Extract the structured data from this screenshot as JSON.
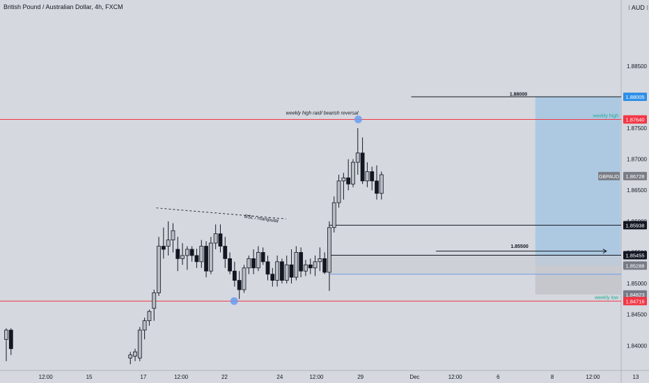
{
  "header": {
    "title": "British Pound / Australian Dollar, 4h, FXCM",
    "currency": "⁝ AUD ⁝"
  },
  "chart_data": {
    "type": "candlestick",
    "symbol": "GBPAUD",
    "ylim": [
      1.836,
      1.8945
    ],
    "y_ticks": [
      "1.88500",
      "1.87500",
      "1.87000",
      "1.86500",
      "1.86000",
      "1.85500",
      "1.85000",
      "1.84500",
      "1.84000"
    ],
    "x_labels": [
      {
        "label": "12:00",
        "t": 3.5
      },
      {
        "label": "15",
        "t": 7.35
      },
      {
        "label": "17",
        "t": 12.15
      },
      {
        "label": "12:00",
        "t": 15.5
      },
      {
        "label": "22",
        "t": 19.35
      },
      {
        "label": "24",
        "t": 24.25
      },
      {
        "label": "12:00",
        "t": 27.5
      },
      {
        "label": "29",
        "t": 31.4
      },
      {
        "label": "Dec",
        "t": 36.2
      },
      {
        "label": "12:00",
        "t": 39.8
      },
      {
        "label": "6",
        "t": 43.6
      },
      {
        "label": "8",
        "t": 48.4
      },
      {
        "label": "12:00",
        "t": 52
      },
      {
        "label": "13",
        "t": 55.8
      }
    ],
    "candles": [
      {
        "t": 0.0,
        "o": 1.841,
        "h": 1.8428,
        "l": 1.8375,
        "c": 1.8425
      },
      {
        "t": 0.42,
        "o": 1.8425,
        "h": 1.8428,
        "l": 1.8385,
        "c": 1.8395
      },
      {
        "t": 11.0,
        "o": 1.838,
        "h": 1.839,
        "l": 1.837,
        "c": 1.8385
      },
      {
        "t": 11.42,
        "o": 1.8383,
        "h": 1.8395,
        "l": 1.8375,
        "c": 1.839
      },
      {
        "t": 11.84,
        "o": 1.838,
        "h": 1.843,
        "l": 1.8375,
        "c": 1.8425
      },
      {
        "t": 12.26,
        "o": 1.8425,
        "h": 1.8445,
        "l": 1.841,
        "c": 1.844
      },
      {
        "t": 12.68,
        "o": 1.844,
        "h": 1.8458,
        "l": 1.8432,
        "c": 1.8455
      },
      {
        "t": 13.1,
        "o": 1.846,
        "h": 1.849,
        "l": 1.844,
        "c": 1.8485
      },
      {
        "t": 13.52,
        "o": 1.8485,
        "h": 1.8575,
        "l": 1.848,
        "c": 1.856
      },
      {
        "t": 13.94,
        "o": 1.856,
        "h": 1.859,
        "l": 1.854,
        "c": 1.8555
      },
      {
        "t": 14.36,
        "o": 1.856,
        "h": 1.86,
        "l": 1.8545,
        "c": 1.857
      },
      {
        "t": 14.78,
        "o": 1.857,
        "h": 1.8597,
        "l": 1.855,
        "c": 1.8585
      },
      {
        "t": 15.2,
        "o": 1.8555,
        "h": 1.8575,
        "l": 1.852,
        "c": 1.854
      },
      {
        "t": 15.62,
        "o": 1.854,
        "h": 1.8565,
        "l": 1.853,
        "c": 1.8545
      },
      {
        "t": 16.04,
        "o": 1.8545,
        "h": 1.856,
        "l": 1.8522,
        "c": 1.8555
      },
      {
        "t": 16.46,
        "o": 1.8555,
        "h": 1.856,
        "l": 1.8535,
        "c": 1.8545
      },
      {
        "t": 16.88,
        "o": 1.8545,
        "h": 1.8556,
        "l": 1.8525,
        "c": 1.8535
      },
      {
        "t": 17.3,
        "o": 1.8535,
        "h": 1.857,
        "l": 1.8525,
        "c": 1.856
      },
      {
        "t": 17.72,
        "o": 1.856,
        "h": 1.8568,
        "l": 1.851,
        "c": 1.852
      },
      {
        "t": 18.14,
        "o": 1.852,
        "h": 1.8575,
        "l": 1.8515,
        "c": 1.8565
      },
      {
        "t": 18.56,
        "o": 1.8565,
        "h": 1.8595,
        "l": 1.8555,
        "c": 1.858
      },
      {
        "t": 18.98,
        "o": 1.858,
        "h": 1.8595,
        "l": 1.855,
        "c": 1.856
      },
      {
        "t": 19.4,
        "o": 1.856,
        "h": 1.8575,
        "l": 1.8525,
        "c": 1.854
      },
      {
        "t": 19.82,
        "o": 1.854,
        "h": 1.855,
        "l": 1.8515,
        "c": 1.852
      },
      {
        "t": 20.24,
        "o": 1.852,
        "h": 1.8535,
        "l": 1.8495,
        "c": 1.8505
      },
      {
        "t": 20.66,
        "o": 1.8505,
        "h": 1.852,
        "l": 1.8475,
        "c": 1.849
      },
      {
        "t": 21.08,
        "o": 1.849,
        "h": 1.853,
        "l": 1.8485,
        "c": 1.8525
      },
      {
        "t": 21.5,
        "o": 1.8525,
        "h": 1.8545,
        "l": 1.8515,
        "c": 1.854
      },
      {
        "t": 21.92,
        "o": 1.854,
        "h": 1.8555,
        "l": 1.8515,
        "c": 1.8525
      },
      {
        "t": 22.34,
        "o": 1.8525,
        "h": 1.856,
        "l": 1.852,
        "c": 1.855
      },
      {
        "t": 22.76,
        "o": 1.855,
        "h": 1.8558,
        "l": 1.853,
        "c": 1.8535
      },
      {
        "t": 23.18,
        "o": 1.8535,
        "h": 1.8545,
        "l": 1.8505,
        "c": 1.8515
      },
      {
        "t": 23.6,
        "o": 1.8515,
        "h": 1.8525,
        "l": 1.8495,
        "c": 1.8505
      },
      {
        "t": 24.02,
        "o": 1.8505,
        "h": 1.8545,
        "l": 1.8495,
        "c": 1.8535
      },
      {
        "t": 24.44,
        "o": 1.8535,
        "h": 1.854,
        "l": 1.85,
        "c": 1.8505
      },
      {
        "t": 24.86,
        "o": 1.8505,
        "h": 1.8545,
        "l": 1.85,
        "c": 1.853
      },
      {
        "t": 25.28,
        "o": 1.853,
        "h": 1.8555,
        "l": 1.85,
        "c": 1.851
      },
      {
        "t": 25.7,
        "o": 1.851,
        "h": 1.856,
        "l": 1.8505,
        "c": 1.855
      },
      {
        "t": 26.12,
        "o": 1.855,
        "h": 1.8558,
        "l": 1.851,
        "c": 1.852
      },
      {
        "t": 26.54,
        "o": 1.852,
        "h": 1.8538,
        "l": 1.8512,
        "c": 1.853
      },
      {
        "t": 26.96,
        "o": 1.853,
        "h": 1.854,
        "l": 1.8515,
        "c": 1.8525
      },
      {
        "t": 27.38,
        "o": 1.8525,
        "h": 1.8545,
        "l": 1.8512,
        "c": 1.8535
      },
      {
        "t": 27.8,
        "o": 1.8535,
        "h": 1.8558,
        "l": 1.852,
        "c": 1.854
      },
      {
        "t": 28.22,
        "o": 1.854,
        "h": 1.855,
        "l": 1.8515,
        "c": 1.8518
      },
      {
        "t": 28.64,
        "o": 1.8518,
        "h": 1.86,
        "l": 1.8488,
        "c": 1.859
      },
      {
        "t": 29.06,
        "o": 1.859,
        "h": 1.864,
        "l": 1.8582,
        "c": 1.863
      },
      {
        "t": 29.48,
        "o": 1.863,
        "h": 1.8675,
        "l": 1.8622,
        "c": 1.8665
      },
      {
        "t": 29.9,
        "o": 1.8665,
        "h": 1.8678,
        "l": 1.8635,
        "c": 1.867
      },
      {
        "t": 30.32,
        "o": 1.867,
        "h": 1.87,
        "l": 1.865,
        "c": 1.866
      },
      {
        "t": 30.74,
        "o": 1.866,
        "h": 1.87,
        "l": 1.8655,
        "c": 1.8695
      },
      {
        "t": 31.16,
        "o": 1.8695,
        "h": 1.875,
        "l": 1.8675,
        "c": 1.871
      },
      {
        "t": 31.58,
        "o": 1.871,
        "h": 1.8735,
        "l": 1.866,
        "c": 1.8665
      },
      {
        "t": 32.0,
        "o": 1.8665,
        "h": 1.8695,
        "l": 1.8655,
        "c": 1.868
      },
      {
        "t": 32.42,
        "o": 1.868,
        "h": 1.8688,
        "l": 1.865,
        "c": 1.8665
      },
      {
        "t": 32.84,
        "o": 1.8665,
        "h": 1.869,
        "l": 1.8635,
        "c": 1.8645
      },
      {
        "t": 33.26,
        "o": 1.8645,
        "h": 1.868,
        "l": 1.8635,
        "c": 1.8675
      }
    ],
    "h_lines": [
      {
        "name": "weekly high",
        "price": 1.8764,
        "color": "#f23645",
        "label": "weekly high"
      },
      {
        "name": "weekly low",
        "price": 1.84716,
        "color": "#f23645",
        "label": "weekly low"
      }
    ],
    "price_badges": [
      {
        "label": "1.88005",
        "price": 1.88005,
        "bg": "#2f8fe8",
        "fg": "#ffffff"
      },
      {
        "label": "1.87640",
        "price": 1.8764,
        "bg": "#f23645",
        "fg": "#ffffff"
      },
      {
        "label": "GBPAUD",
        "price": 1.86728,
        "bg": "#7a7d85",
        "fg": "#ffffff",
        "side": "left"
      },
      {
        "label": "1.86728",
        "price": 1.86728,
        "bg": "#7a7d85",
        "fg": "#ffffff"
      },
      {
        "label": "1.85938",
        "price": 1.85938,
        "bg": "#131722",
        "fg": "#ffffff"
      },
      {
        "label": "1.85455",
        "price": 1.85455,
        "bg": "#131722",
        "fg": "#ffffff"
      },
      {
        "label": "1.85288",
        "price": 1.85288,
        "bg": "#787b86",
        "fg": "#ffffff"
      },
      {
        "label": "1.84823",
        "price": 1.84823,
        "bg": "#787b86",
        "fg": "#ffffff"
      },
      {
        "label": "1.84716",
        "price": 1.84716,
        "bg": "#f23645",
        "fg": "#ffffff"
      }
    ],
    "annotations": [
      {
        "text": "weekly high raid/ bearish reversal",
        "t": 28.0,
        "price": 1.8772
      },
      {
        "text": "BSL / manipulat",
        "t": 22.6,
        "price": 1.8602
      },
      {
        "text": "1.88000",
        "t": 45.4,
        "price": 1.8802
      },
      {
        "text": "1.85500",
        "t": 45.5,
        "price": 1.8557
      }
    ],
    "colors": {
      "background": "#d5d8de",
      "candle_up": "#b7bbc3",
      "candle_down": "#131722",
      "grid_text": "#131722",
      "accent": "#2962ff",
      "zone_blue": "#a9c8e2",
      "zone_gray": "#c3c5cb",
      "marker": "#6b9cf0"
    }
  }
}
